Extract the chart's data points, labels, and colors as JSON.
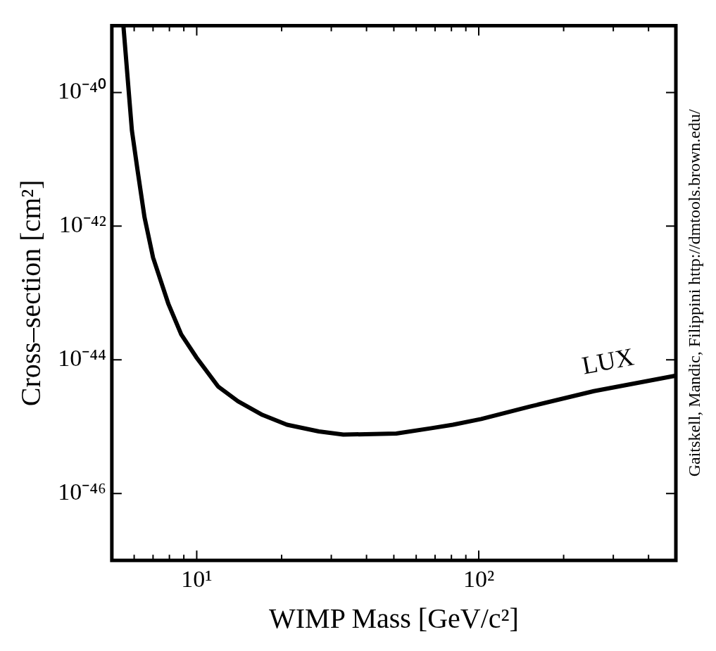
{
  "chart_data": {
    "type": "line",
    "xlabel": "WIMP Mass [GeV/c²]",
    "ylabel": "Cross–section [cm²]",
    "log": "xy",
    "grid": false,
    "legend": "right",
    "marker": "none",
    "line_style": "solid",
    "xlim": [
      5,
      500
    ],
    "ylim": [
      1e-47,
      1e-39
    ],
    "xticks": [
      {
        "value": 6,
        "label": null
      },
      {
        "value": 7,
        "label": null
      },
      {
        "value": 8,
        "label": null
      },
      {
        "value": 9,
        "label": null
      },
      {
        "value": 10,
        "label": "10¹"
      },
      {
        "value": 20,
        "label": null
      },
      {
        "value": 30,
        "label": null
      },
      {
        "value": 40,
        "label": null
      },
      {
        "value": 50,
        "label": null
      },
      {
        "value": 60,
        "label": null
      },
      {
        "value": 70,
        "label": null
      },
      {
        "value": 80,
        "label": null
      },
      {
        "value": 90,
        "label": null
      },
      {
        "value": 100,
        "label": "10²"
      },
      {
        "value": 200,
        "label": null
      },
      {
        "value": 300,
        "label": null
      },
      {
        "value": 400,
        "label": null
      }
    ],
    "yticks": [
      {
        "value": 1e-40,
        "label": "10⁻⁴⁰"
      },
      {
        "value": 1e-42,
        "label": "10⁻⁴²"
      },
      {
        "value": 1e-44,
        "label": "10⁻⁴⁴"
      },
      {
        "value": 1e-46,
        "label": "10⁻⁴⁶"
      }
    ],
    "series": [
      {
        "name": "LUX",
        "color": "#000000",
        "x": [
          5.5,
          5.89,
          6.17,
          6.53,
          7.0,
          7.94,
          8.81,
          10,
          11.9,
          14,
          17.1,
          20.9,
          27.1,
          33.1,
          51,
          68,
          81,
          102,
          152,
          256,
          500
        ],
        "values": [
          9.5e-40,
          2.7e-41,
          6.8e-42,
          1.35e-42,
          3.4e-43,
          6.8e-44,
          2.4e-44,
          1.07e-44,
          4e-45,
          2.4e-45,
          1.5e-45,
          1.07e-45,
          8.5e-46,
          7.6e-46,
          7.9e-46,
          9.5e-46,
          1.07e-45,
          1.3e-45,
          2e-45,
          3.4e-45,
          5.8e-45
        ]
      }
    ],
    "annotations": [
      "Gaitskell, Mandic, Filippini http://dmtools.brown.edu/"
    ]
  }
}
